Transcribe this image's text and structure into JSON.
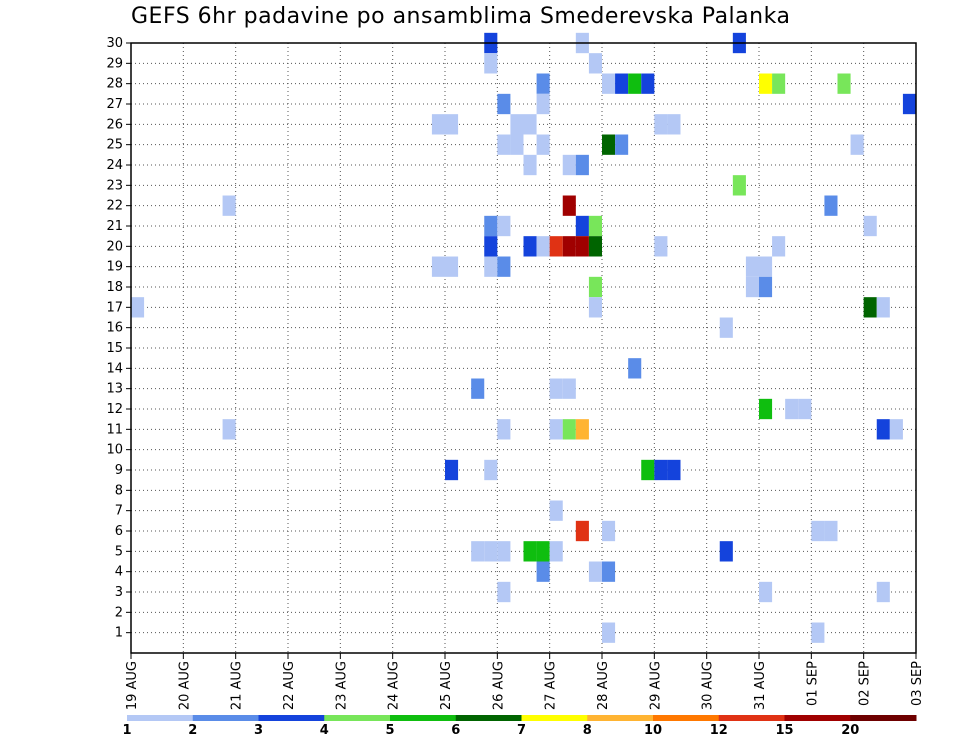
{
  "chart_data": {
    "type": "heatmap",
    "title": "GEFS 6hr padavine po ansamblima Smederevska Palanka",
    "x_tick_labels": [
      "19 AUG",
      "20 AUG",
      "21 AUG",
      "22 AUG",
      "23 AUG",
      "24 AUG",
      "25 AUG",
      "26 AUG",
      "27 AUG",
      "28 AUG",
      "29 AUG",
      "30 AUG",
      "31 AUG",
      "01 SEP",
      "02 SEP",
      "03 SEP"
    ],
    "y_tick_labels": [
      "1",
      "2",
      "3",
      "4",
      "5",
      "6",
      "7",
      "8",
      "9",
      "10",
      "11",
      "12",
      "13",
      "14",
      "15",
      "16",
      "17",
      "18",
      "19",
      "20",
      "21",
      "22",
      "23",
      "24",
      "25",
      "26",
      "27",
      "28",
      "29",
      "30"
    ],
    "xlim": [
      0,
      60
    ],
    "ylim": [
      0,
      30
    ],
    "grid": true,
    "colorbar": {
      "colors": [
        "#b4c8f5",
        "#5a8ce8",
        "#1443dc",
        "#78e65a",
        "#0fbe0f",
        "#006400",
        "#ffff00",
        "#ffb432",
        "#ff7800",
        "#e03214",
        "#a00000",
        "#6e0000"
      ],
      "labels": [
        "1",
        "2",
        "3",
        "4",
        "5",
        "6",
        "7",
        "8",
        "10",
        "12",
        "15",
        "20"
      ]
    },
    "cells": [
      {
        "x": 27.5,
        "y": 30,
        "c": 2
      },
      {
        "x": 34.5,
        "y": 30,
        "c": 0
      },
      {
        "x": 46.5,
        "y": 30,
        "c": 2
      },
      {
        "x": 27.5,
        "y": 29,
        "c": 0
      },
      {
        "x": 35.5,
        "y": 29,
        "c": 0
      },
      {
        "x": 31.5,
        "y": 28,
        "c": 1
      },
      {
        "x": 36.5,
        "y": 28,
        "c": 0
      },
      {
        "x": 37.5,
        "y": 28,
        "c": 2
      },
      {
        "x": 38.5,
        "y": 28,
        "c": 4
      },
      {
        "x": 39.5,
        "y": 28,
        "c": 2
      },
      {
        "x": 48.5,
        "y": 28,
        "c": 6
      },
      {
        "x": 49.5,
        "y": 28,
        "c": 3
      },
      {
        "x": 54.5,
        "y": 28,
        "c": 3
      },
      {
        "x": 28.5,
        "y": 27,
        "c": 1
      },
      {
        "x": 31.5,
        "y": 27,
        "c": 0
      },
      {
        "x": 59.5,
        "y": 27,
        "c": 2
      },
      {
        "x": 23.5,
        "y": 26,
        "c": 0
      },
      {
        "x": 24.5,
        "y": 26,
        "c": 0
      },
      {
        "x": 29.5,
        "y": 26,
        "c": 0
      },
      {
        "x": 30.5,
        "y": 26,
        "c": 0
      },
      {
        "x": 40.5,
        "y": 26,
        "c": 0
      },
      {
        "x": 41.5,
        "y": 26,
        "c": 0
      },
      {
        "x": 28.5,
        "y": 25,
        "c": 0
      },
      {
        "x": 29.5,
        "y": 25,
        "c": 0
      },
      {
        "x": 31.5,
        "y": 25,
        "c": 0
      },
      {
        "x": 36.5,
        "y": 25,
        "c": 5
      },
      {
        "x": 37.5,
        "y": 25,
        "c": 1
      },
      {
        "x": 55.5,
        "y": 25,
        "c": 0
      },
      {
        "x": 30.5,
        "y": 24,
        "c": 0
      },
      {
        "x": 33.5,
        "y": 24,
        "c": 0
      },
      {
        "x": 34.5,
        "y": 24,
        "c": 1
      },
      {
        "x": 46.5,
        "y": 23,
        "c": 3
      },
      {
        "x": 7.5,
        "y": 22,
        "c": 0
      },
      {
        "x": 33.5,
        "y": 22,
        "c": 10
      },
      {
        "x": 53.5,
        "y": 22,
        "c": 1
      },
      {
        "x": 27.5,
        "y": 21,
        "c": 1
      },
      {
        "x": 28.5,
        "y": 21,
        "c": 0
      },
      {
        "x": 34.5,
        "y": 21,
        "c": 2
      },
      {
        "x": 35.5,
        "y": 21,
        "c": 3
      },
      {
        "x": 56.5,
        "y": 21,
        "c": 0
      },
      {
        "x": 27.5,
        "y": 20,
        "c": 2
      },
      {
        "x": 30.5,
        "y": 20,
        "c": 2
      },
      {
        "x": 31.5,
        "y": 20,
        "c": 0
      },
      {
        "x": 32.5,
        "y": 20,
        "c": 9
      },
      {
        "x": 33.5,
        "y": 20,
        "c": 10
      },
      {
        "x": 34.5,
        "y": 20,
        "c": 10
      },
      {
        "x": 35.5,
        "y": 20,
        "c": 5
      },
      {
        "x": 40.5,
        "y": 20,
        "c": 0
      },
      {
        "x": 49.5,
        "y": 20,
        "c": 0
      },
      {
        "x": 23.5,
        "y": 19,
        "c": 0
      },
      {
        "x": 24.5,
        "y": 19,
        "c": 0
      },
      {
        "x": 27.5,
        "y": 19,
        "c": 0
      },
      {
        "x": 28.5,
        "y": 19,
        "c": 1
      },
      {
        "x": 47.5,
        "y": 19,
        "c": 0
      },
      {
        "x": 48.5,
        "y": 19,
        "c": 0
      },
      {
        "x": 47.5,
        "y": 18,
        "c": 0
      },
      {
        "x": 48.5,
        "y": 18,
        "c": 1
      },
      {
        "x": 35.5,
        "y": 18,
        "c": 3
      },
      {
        "x": 0.5,
        "y": 17,
        "c": 0
      },
      {
        "x": 35.5,
        "y": 17,
        "c": 0
      },
      {
        "x": 56.5,
        "y": 17,
        "c": 5
      },
      {
        "x": 57.5,
        "y": 17,
        "c": 0
      },
      {
        "x": 45.5,
        "y": 16,
        "c": 0
      },
      {
        "x": 38.5,
        "y": 14,
        "c": 1
      },
      {
        "x": 26.5,
        "y": 13,
        "c": 1
      },
      {
        "x": 32.5,
        "y": 13,
        "c": 0
      },
      {
        "x": 33.5,
        "y": 13,
        "c": 0
      },
      {
        "x": 48.5,
        "y": 12,
        "c": 4
      },
      {
        "x": 50.5,
        "y": 12,
        "c": 0
      },
      {
        "x": 51.5,
        "y": 12,
        "c": 0
      },
      {
        "x": 7.5,
        "y": 11,
        "c": 0
      },
      {
        "x": 28.5,
        "y": 11,
        "c": 0
      },
      {
        "x": 32.5,
        "y": 11,
        "c": 0
      },
      {
        "x": 33.5,
        "y": 11,
        "c": 3
      },
      {
        "x": 34.5,
        "y": 11,
        "c": 7
      },
      {
        "x": 57.5,
        "y": 11,
        "c": 2
      },
      {
        "x": 58.5,
        "y": 11,
        "c": 0
      },
      {
        "x": 24.5,
        "y": 9,
        "c": 2
      },
      {
        "x": 27.5,
        "y": 9,
        "c": 0
      },
      {
        "x": 39.5,
        "y": 9,
        "c": 4
      },
      {
        "x": 40.5,
        "y": 9,
        "c": 2
      },
      {
        "x": 41.5,
        "y": 9,
        "c": 2
      },
      {
        "x": 32.5,
        "y": 7,
        "c": 0
      },
      {
        "x": 34.5,
        "y": 6,
        "c": 9
      },
      {
        "x": 36.5,
        "y": 6,
        "c": 0
      },
      {
        "x": 52.5,
        "y": 6,
        "c": 0
      },
      {
        "x": 53.5,
        "y": 6,
        "c": 0
      },
      {
        "x": 26.5,
        "y": 5,
        "c": 0
      },
      {
        "x": 27.5,
        "y": 5,
        "c": 0
      },
      {
        "x": 28.5,
        "y": 5,
        "c": 0
      },
      {
        "x": 30.5,
        "y": 5,
        "c": 4
      },
      {
        "x": 31.5,
        "y": 5,
        "c": 4
      },
      {
        "x": 32.5,
        "y": 5,
        "c": 0
      },
      {
        "x": 45.5,
        "y": 5,
        "c": 2
      },
      {
        "x": 31.5,
        "y": 4,
        "c": 1
      },
      {
        "x": 35.5,
        "y": 4,
        "c": 0
      },
      {
        "x": 36.5,
        "y": 4,
        "c": 1
      },
      {
        "x": 28.5,
        "y": 3,
        "c": 0
      },
      {
        "x": 48.5,
        "y": 3,
        "c": 0
      },
      {
        "x": 57.5,
        "y": 3,
        "c": 0
      },
      {
        "x": 36.5,
        "y": 1,
        "c": 0
      },
      {
        "x": 52.5,
        "y": 1,
        "c": 0
      }
    ]
  }
}
